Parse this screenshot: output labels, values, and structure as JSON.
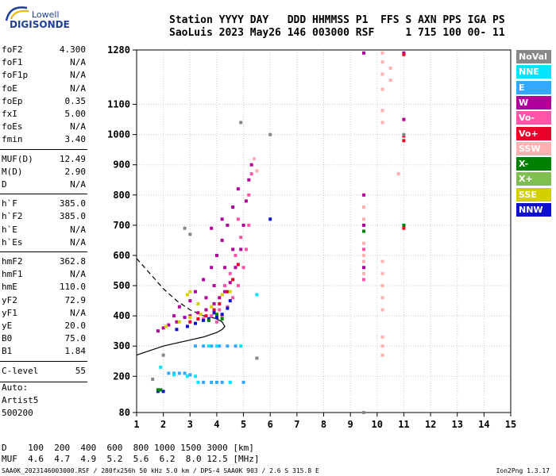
{
  "logo": {
    "line1": "Lowell",
    "line2": "DIGISONDE"
  },
  "header": {
    "labels": [
      "Station",
      "YYYY",
      "DAY",
      "DDD",
      "HHMMSS",
      "P1",
      "FFS",
      "S",
      "AXN",
      "PPS",
      "IGA",
      "PS"
    ],
    "values": [
      "SaoLuis",
      "2023",
      "May26",
      "146",
      "003000",
      "RSF",
      "1",
      "715",
      "100",
      "00-",
      "11"
    ],
    "line1": "Station YYYY DAY   DDD HHMMSS P1  FFS S AXN PPS IGA PS",
    "line2": "SaoLuis 2023 May26 146 003000 RSF     1 715 100 00- 11"
  },
  "parameters": [
    {
      "name": "foF2",
      "value": "4.300"
    },
    {
      "name": "foF1",
      "value": "N/A"
    },
    {
      "name": "foF1p",
      "value": "N/A"
    },
    {
      "name": "foE",
      "value": "N/A"
    },
    {
      "name": "foEp",
      "value": "0.35"
    },
    {
      "name": "fxI",
      "value": "5.00"
    },
    {
      "name": "foEs",
      "value": "N/A"
    },
    {
      "name": "fmin",
      "value": "3.40"
    },
    {
      "name": "MUF(D)",
      "value": "12.49"
    },
    {
      "name": "M(D)",
      "value": "2.90"
    },
    {
      "name": "D",
      "value": "N/A"
    },
    {
      "name": "h`F",
      "value": "385.0"
    },
    {
      "name": "h`F2",
      "value": "385.0"
    },
    {
      "name": "h`E",
      "value": "N/A"
    },
    {
      "name": "h`Es",
      "value": "N/A"
    },
    {
      "name": "hmF2",
      "value": "362.8"
    },
    {
      "name": "hmF1",
      "value": "N/A"
    },
    {
      "name": "hmE",
      "value": "110.0"
    },
    {
      "name": "yF2",
      "value": "72.9"
    },
    {
      "name": "yF1",
      "value": "N/A"
    },
    {
      "name": "yE",
      "value": "20.0"
    },
    {
      "name": "B0",
      "value": "75.0"
    },
    {
      "name": "B1",
      "value": "1.84"
    },
    {
      "name": "C-level",
      "value": "55"
    }
  ],
  "autoscaling": {
    "line1": "Auto:",
    "line2": "Artist5",
    "line3": "500200"
  },
  "legend": [
    {
      "label": "NoVal",
      "color": "#888888"
    },
    {
      "label": "NNE",
      "color": "#00e5ff"
    },
    {
      "label": "E",
      "color": "#33a8ff"
    },
    {
      "label": "W",
      "color": "#b0009a"
    },
    {
      "label": "Vo-",
      "color": "#ff55a8"
    },
    {
      "label": "Vo+",
      "color": "#e8002a"
    },
    {
      "label": "SSW",
      "color": "#ffb0b0"
    },
    {
      "label": "X-",
      "color": "#008000"
    },
    {
      "label": "X+",
      "color": "#7fbf50"
    },
    {
      "label": "SSE",
      "color": "#d4d000"
    },
    {
      "label": "NNW",
      "color": "#1010cc"
    }
  ],
  "muf_table": {
    "row1": "D    100  200  400  600  800 1000 1500 3000 [km]",
    "row2": "MUF  4.6  4.7  4.9  5.2  5.6  6.2  8.0 12.5 [MHz]"
  },
  "footer": {
    "left": "SAA0K_2023146003000.RSF / 280fx256h 50 kHz 5.0 km / DPS-4 SAA0K 903 / 2.6 S 315.8 E",
    "right": "Ion2Png 1.3.17"
  },
  "chart_data": {
    "type": "scatter",
    "title": "",
    "xlabel": "",
    "ylabel": "",
    "xlim": [
      1,
      15
    ],
    "ylim": [
      80,
      1280
    ],
    "x_ticks": [
      1,
      2,
      3,
      4,
      5,
      6,
      7,
      8,
      9,
      10,
      11,
      12,
      13,
      14,
      15
    ],
    "y_ticks": [
      80,
      200,
      300,
      400,
      500,
      600,
      700,
      800,
      900,
      1000,
      1100,
      1280
    ],
    "grid": true,
    "series": [
      {
        "color": "#b0009a",
        "points": [
          [
            1.8,
            350
          ],
          [
            2.0,
            360
          ],
          [
            2.2,
            370
          ],
          [
            2.5,
            380
          ],
          [
            2.8,
            395
          ],
          [
            3.0,
            400
          ],
          [
            3.3,
            410
          ],
          [
            3.6,
            420
          ],
          [
            3.9,
            440
          ],
          [
            4.1,
            460
          ],
          [
            4.3,
            480
          ],
          [
            4.5,
            510
          ],
          [
            4.7,
            560
          ],
          [
            4.9,
            620
          ],
          [
            5.0,
            700
          ],
          [
            5.1,
            780
          ],
          [
            5.2,
            850
          ],
          [
            5.3,
            900
          ],
          [
            3.2,
            480
          ],
          [
            3.5,
            520
          ],
          [
            3.8,
            560
          ],
          [
            4.0,
            600
          ],
          [
            4.2,
            650
          ],
          [
            4.4,
            700
          ],
          [
            4.6,
            760
          ],
          [
            4.8,
            820
          ],
          [
            3.6,
            460
          ],
          [
            3.9,
            500
          ],
          [
            4.3,
            560
          ],
          [
            4.6,
            620
          ],
          [
            2.6,
            430
          ],
          [
            3.0,
            450
          ],
          [
            2.4,
            400
          ],
          [
            4.2,
            720
          ],
          [
            3.8,
            690
          ],
          [
            9.5,
            1270
          ],
          [
            11.0,
            1270
          ],
          [
            11.0,
            1050
          ],
          [
            9.5,
            800
          ],
          [
            9.5,
            700
          ],
          [
            9.5,
            560
          ]
        ]
      },
      {
        "color": "#ff55a8",
        "points": [
          [
            4.0,
            380
          ],
          [
            4.2,
            400
          ],
          [
            4.4,
            430
          ],
          [
            4.6,
            460
          ],
          [
            4.8,
            500
          ],
          [
            5.0,
            560
          ],
          [
            5.1,
            620
          ],
          [
            5.2,
            700
          ],
          [
            4.5,
            540
          ],
          [
            4.3,
            500
          ],
          [
            4.7,
            600
          ],
          [
            4.9,
            660
          ],
          [
            4.1,
            420
          ],
          [
            3.8,
            400
          ],
          [
            3.5,
            390
          ],
          [
            5.2,
            800
          ],
          [
            5.3,
            870
          ],
          [
            4.8,
            720
          ],
          [
            9.5,
            620
          ],
          [
            9.5,
            520
          ]
        ]
      },
      {
        "color": "#e8002a",
        "points": [
          [
            3.6,
            400
          ],
          [
            3.9,
            420
          ],
          [
            4.1,
            440
          ],
          [
            4.4,
            480
          ],
          [
            4.6,
            520
          ],
          [
            4.8,
            570
          ],
          [
            3.3,
            390
          ],
          [
            3.0,
            380
          ],
          [
            11.0,
            995
          ],
          [
            11.0,
            980
          ],
          [
            11.0,
            690
          ],
          [
            11.0,
            1265
          ]
        ]
      },
      {
        "color": "#1010cc",
        "points": [
          [
            1.8,
            150
          ],
          [
            2.0,
            150
          ],
          [
            3.5,
            385
          ],
          [
            3.7,
            390
          ],
          [
            4.0,
            395
          ],
          [
            4.2,
            405
          ],
          [
            4.4,
            425
          ],
          [
            3.9,
            410
          ],
          [
            3.2,
            375
          ],
          [
            2.9,
            365
          ],
          [
            2.5,
            355
          ],
          [
            4.5,
            450
          ],
          [
            6.0,
            720
          ]
        ]
      },
      {
        "color": "#d4d000",
        "points": [
          [
            2.6,
            380
          ],
          [
            3.0,
            395
          ],
          [
            3.4,
            405
          ],
          [
            3.8,
            430
          ],
          [
            4.2,
            470
          ],
          [
            2.1,
            365
          ],
          [
            2.9,
            470
          ],
          [
            3.0,
            480
          ],
          [
            4.5,
            480
          ],
          [
            3.3,
            440
          ]
        ]
      },
      {
        "color": "#33a8ff",
        "points": [
          [
            2.2,
            210
          ],
          [
            2.4,
            210
          ],
          [
            2.6,
            210
          ],
          [
            2.8,
            210
          ],
          [
            3.0,
            205
          ],
          [
            3.5,
            180
          ],
          [
            3.8,
            180
          ],
          [
            4.0,
            180
          ],
          [
            4.2,
            180
          ],
          [
            4.5,
            180
          ],
          [
            5.0,
            180
          ],
          [
            3.2,
            300
          ],
          [
            3.5,
            300
          ],
          [
            3.8,
            300
          ],
          [
            4.1,
            300
          ],
          [
            4.4,
            300
          ],
          [
            4.7,
            300
          ]
        ]
      },
      {
        "color": "#00e5ff",
        "points": [
          [
            1.9,
            230
          ],
          [
            2.4,
            205
          ],
          [
            2.9,
            200
          ],
          [
            3.3,
            180
          ],
          [
            3.7,
            300
          ],
          [
            4.0,
            300
          ],
          [
            4.5,
            180
          ],
          [
            3.2,
            200
          ],
          [
            4.9,
            300
          ],
          [
            5.5,
            470
          ]
        ]
      },
      {
        "color": "#ffb0b0",
        "points": [
          [
            10.2,
            1270
          ],
          [
            10.2,
            1240
          ],
          [
            10.2,
            1200
          ],
          [
            10.2,
            1150
          ],
          [
            10.2,
            1080
          ],
          [
            10.2,
            1040
          ],
          [
            10.2,
            580
          ],
          [
            10.2,
            540
          ],
          [
            10.2,
            500
          ],
          [
            10.2,
            460
          ],
          [
            10.2,
            420
          ],
          [
            10.2,
            330
          ],
          [
            10.2,
            300
          ],
          [
            10.2,
            270
          ],
          [
            9.5,
            760
          ],
          [
            9.5,
            720
          ],
          [
            9.5,
            640
          ],
          [
            9.5,
            600
          ],
          [
            9.5,
            580
          ],
          [
            9.5,
            540
          ],
          [
            5.4,
            920
          ],
          [
            5.5,
            880
          ],
          [
            10.5,
            1220
          ],
          [
            10.5,
            1180
          ],
          [
            10.8,
            870
          ]
        ]
      },
      {
        "color": "#008000",
        "points": [
          [
            1.8,
            155
          ],
          [
            1.9,
            155
          ],
          [
            3.7,
            385
          ],
          [
            4.0,
            405
          ],
          [
            9.5,
            680
          ],
          [
            11.0,
            700
          ],
          [
            4.2,
            390
          ]
        ]
      },
      {
        "color": "#888888",
        "points": [
          [
            1.6,
            190
          ],
          [
            2.0,
            270
          ],
          [
            5.5,
            260
          ],
          [
            9.5,
            80
          ],
          [
            11.0,
            1000
          ],
          [
            4.9,
            1040
          ],
          [
            6.0,
            1000
          ],
          [
            3.0,
            670
          ],
          [
            2.8,
            690
          ]
        ]
      }
    ],
    "profile_solid": [
      [
        1.0,
        270
      ],
      [
        2.0,
        300
      ],
      [
        3.0,
        320
      ],
      [
        3.5,
        330
      ],
      [
        4.0,
        345
      ],
      [
        4.2,
        355
      ],
      [
        4.3,
        365
      ],
      [
        4.2,
        380
      ],
      [
        4.0,
        390
      ],
      [
        3.8,
        395
      ]
    ],
    "profile_dashed": [
      [
        1.0,
        590
      ],
      [
        1.5,
        540
      ],
      [
        2.0,
        490
      ],
      [
        2.5,
        450
      ],
      [
        3.0,
        420
      ],
      [
        3.5,
        400
      ],
      [
        3.8,
        395
      ]
    ]
  }
}
